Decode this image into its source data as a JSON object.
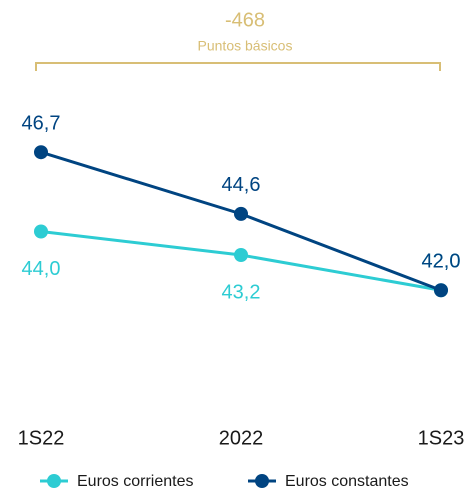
{
  "chart_data": {
    "type": "line",
    "annotation": {
      "value": "-468",
      "label": "Puntos básicos",
      "color": "#d8be75"
    },
    "categories": [
      "1S22",
      "2022",
      "1S23"
    ],
    "series": [
      {
        "name": "Euros corrientes",
        "color": "#2dccd3",
        "values": [
          44.0,
          43.2,
          42.0
        ],
        "value_labels": [
          "44,0",
          "43,2",
          "42,0"
        ]
      },
      {
        "name": "Euros constantes",
        "color": "#004481",
        "values": [
          46.7,
          44.6,
          42.0
        ],
        "value_labels": [
          "46,7",
          "44,6",
          "42,0"
        ]
      }
    ],
    "ylim": [
      40,
      48
    ]
  }
}
